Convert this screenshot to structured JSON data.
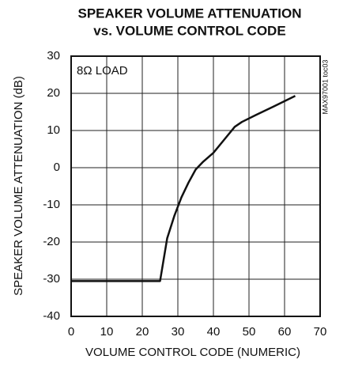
{
  "chart_data": {
    "type": "line",
    "title": [
      "SPEAKER VOLUME ATTENUATION",
      "vs. VOLUME CONTROL CODE"
    ],
    "xlabel": "VOLUME CONTROL CODE (NUMERIC)",
    "ylabel": "SPEAKER VOLUME ATTENUATION (dB)",
    "annotation": "8Ω LOAD",
    "figure_id": "MAX97001 toc03",
    "x": [
      0,
      25,
      27,
      29,
      31,
      33,
      35,
      37,
      40,
      43,
      46,
      48,
      52,
      57,
      63
    ],
    "series": [
      {
        "name": "8Ω LOAD",
        "color": "#111111",
        "values": [
          -30.5,
          -30.5,
          -19,
          -13,
          -8,
          -4,
          -0.5,
          1.5,
          4,
          7.5,
          11,
          12.3,
          14.2,
          16.5,
          19.3
        ]
      }
    ],
    "xlim": [
      0,
      70
    ],
    "xticks": [
      0,
      10,
      20,
      30,
      40,
      50,
      60,
      70
    ],
    "ylim": [
      -40,
      30
    ],
    "yticks": [
      -40,
      -30,
      -20,
      -10,
      0,
      10,
      20,
      30
    ],
    "grid": true
  }
}
